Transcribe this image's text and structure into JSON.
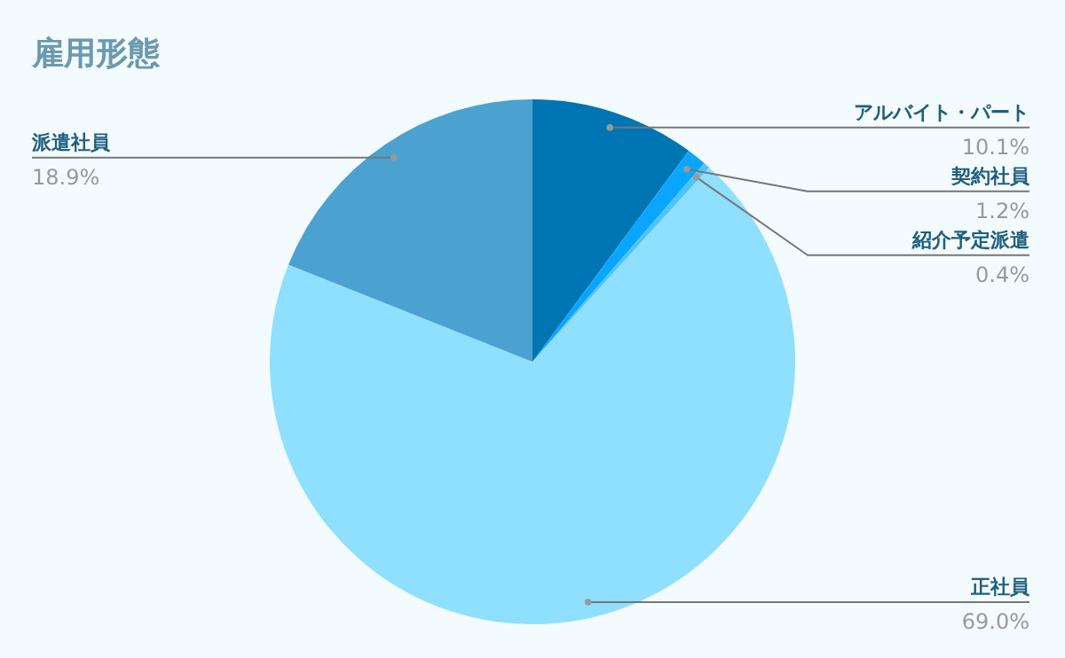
{
  "chart_data": {
    "type": "pie",
    "title": "雇用形態",
    "categories": [
      "アルバイト・パート",
      "契約社員",
      "紹介予定派遣",
      "正社員",
      "派遣社員"
    ],
    "values": [
      10.1,
      1.2,
      0.4,
      69.0,
      18.9
    ],
    "value_labels": [
      "10.1%",
      "1.2%",
      "0.4%",
      "69.0%",
      "18.9%"
    ],
    "colors": [
      "#0075b3",
      "#0aa5ff",
      "#4fc3ff",
      "#8fdfff",
      "#4ba2d1"
    ]
  }
}
